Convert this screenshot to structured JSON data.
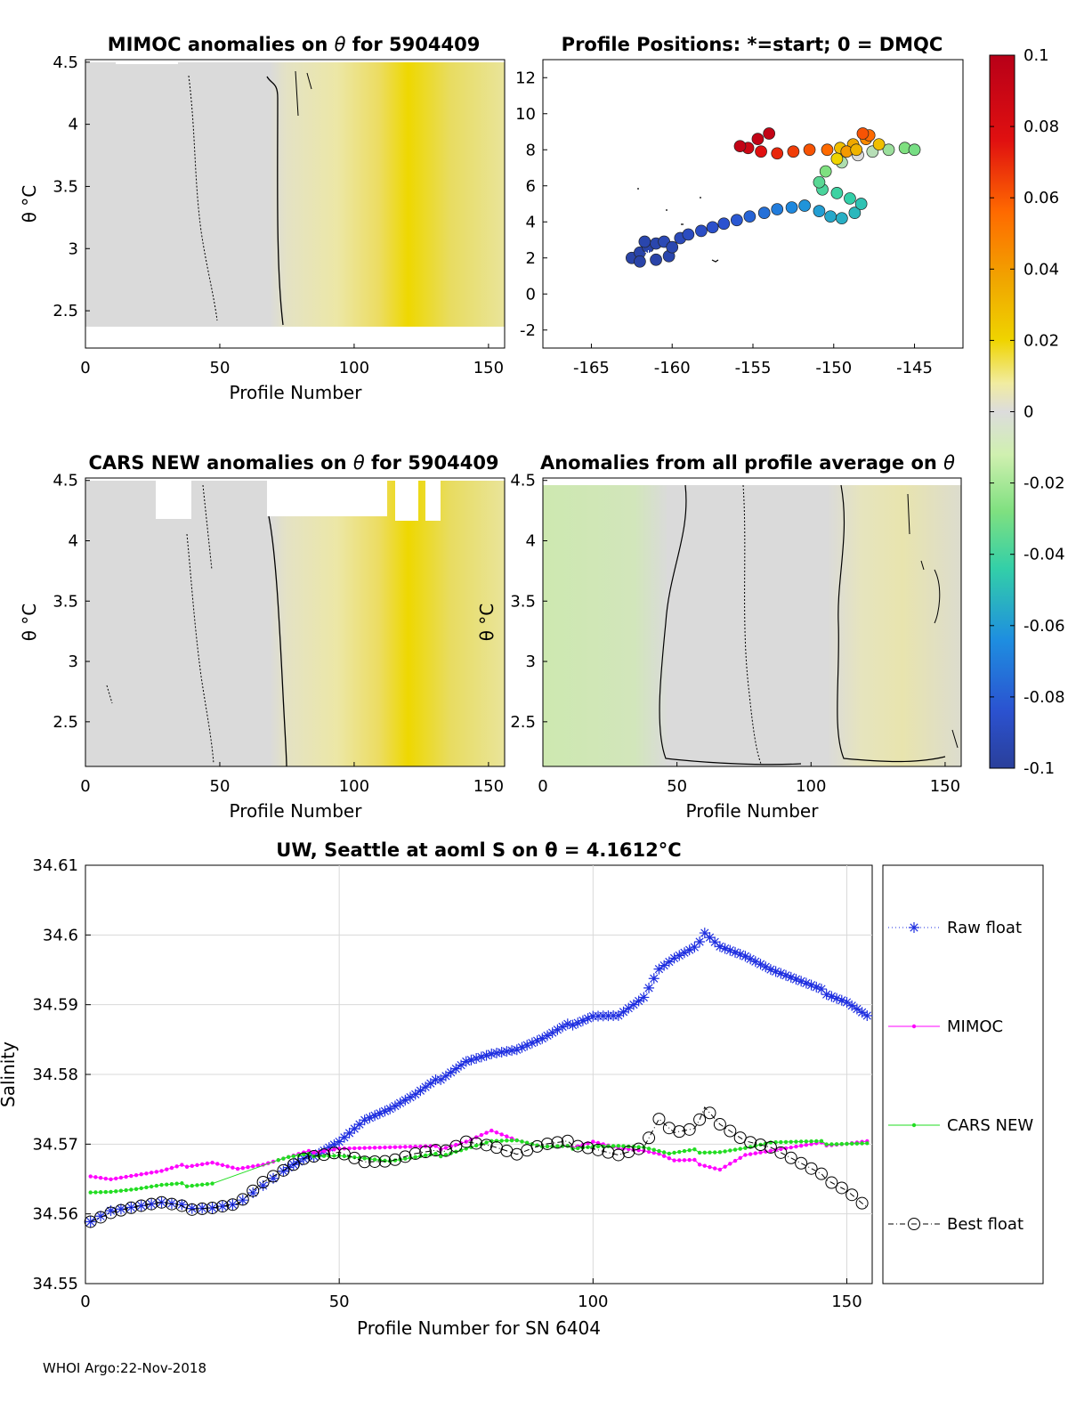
{
  "colors": {
    "raw": "#1f2fe0",
    "mimoc": "#ff00ff",
    "cars": "#22dd22",
    "best": "#000000",
    "grid": "#d9d9d9",
    "panel_bg": "#d8d8d8"
  },
  "panel1": {
    "title_pre": "MIMOC anomalies on ",
    "title_sym": "θ",
    "title_post": "  for 5904409",
    "ylabel": "θ °C",
    "xlabel": "Profile Number",
    "xticks": [
      "0",
      "50",
      "100",
      "150"
    ],
    "yticks": [
      "2.5",
      "3",
      "3.5",
      "4",
      "4.5"
    ],
    "xlim": [
      0,
      156
    ],
    "ylim": [
      2.2,
      4.52
    ]
  },
  "panel2": {
    "title": "Profile Positions: *=start; 0 = DMQC",
    "xticks": [
      "-165",
      "-160",
      "-155",
      "-150",
      "-145"
    ],
    "yticks": [
      "-2",
      "0",
      "2",
      "4",
      "6",
      "8",
      "10",
      "12"
    ],
    "xlim": [
      -168,
      -142
    ],
    "ylim": [
      -3,
      13
    ]
  },
  "panel3": {
    "title_pre": "CARS NEW anomalies on ",
    "title_sym": "θ",
    "title_post": " for 5904409",
    "ylabel": "θ °C",
    "xlabel": "Profile Number",
    "xticks": [
      "0",
      "50",
      "100",
      "150"
    ],
    "yticks": [
      "2.5",
      "3",
      "3.5",
      "4",
      "4.5"
    ]
  },
  "panel4": {
    "title_pre": "Anomalies from all profile average on ",
    "title_sym": "θ",
    "ylabel": "θ °C",
    "xlabel": "Profile Number",
    "xticks": [
      "0",
      "50",
      "100",
      "150"
    ],
    "yticks": [
      "2.5",
      "3",
      "3.5",
      "4",
      "4.5"
    ]
  },
  "colorbar": {
    "ticks": [
      "0.1",
      "0.08",
      "0.06",
      "0.04",
      "0.02",
      "0",
      "-0.02",
      "-0.04",
      "-0.06",
      "-0.08",
      "-0.1"
    ],
    "range": [
      -0.1,
      0.1
    ]
  },
  "chart_data": {
    "type": "line",
    "title": "UW, Seattle at aoml S on θ = 4.1612°C",
    "xlabel": "Profile Number for SN 6404",
    "ylabel": "Salinity",
    "xlim": [
      0,
      155
    ],
    "ylim": [
      34.55,
      34.61
    ],
    "xticks": [
      "0",
      "50",
      "100",
      "150"
    ],
    "yticks": [
      "34.55",
      "34.56",
      "34.57",
      "34.58",
      "34.59",
      "34.6",
      "34.61"
    ],
    "grid": true,
    "legend_placement": "right-outside",
    "series": [
      {
        "name": "Raw float",
        "x": [
          1,
          5,
          10,
          15,
          20,
          25,
          30,
          35,
          40,
          45,
          50,
          55,
          60,
          65,
          70,
          75,
          80,
          85,
          90,
          95,
          100,
          105,
          110,
          113,
          116,
          120,
          122,
          125,
          130,
          135,
          140,
          145,
          150,
          154
        ],
        "values": [
          34.559,
          34.5605,
          34.561,
          34.5615,
          34.561,
          34.561,
          34.5615,
          34.564,
          34.5665,
          34.5685,
          34.5705,
          34.5735,
          34.575,
          34.577,
          34.5795,
          34.582,
          34.583,
          34.5835,
          34.585,
          34.587,
          34.5885,
          34.5885,
          34.591,
          34.595,
          34.5965,
          34.598,
          34.6005,
          34.5985,
          34.597,
          34.595,
          34.5935,
          34.592,
          34.5905,
          34.5885
        ]
      },
      {
        "name": "MIMOC",
        "x": [
          1,
          5,
          10,
          15,
          20,
          25,
          30,
          35,
          40,
          45,
          50,
          55,
          60,
          65,
          70,
          75,
          80,
          85,
          90,
          95,
          100,
          105,
          110,
          113,
          116,
          120,
          125,
          130,
          135,
          140,
          145,
          150,
          154
        ],
        "values": [
          34.5655,
          34.565,
          34.5655,
          34.566,
          34.567,
          34.5675,
          34.5665,
          34.567,
          34.568,
          34.569,
          34.5695,
          34.5695,
          34.5695,
          34.5695,
          34.5695,
          34.5705,
          34.572,
          34.5705,
          34.5695,
          34.5695,
          34.5705,
          34.5695,
          34.569,
          34.5685,
          34.5675,
          34.5675,
          34.5665,
          34.5685,
          34.569,
          34.5695,
          34.57,
          34.5702,
          34.5705
        ]
      },
      {
        "name": "CARS NEW",
        "x": [
          1,
          5,
          10,
          15,
          20,
          25,
          30,
          35,
          40,
          45,
          50,
          55,
          60,
          65,
          70,
          75,
          80,
          85,
          90,
          95,
          100,
          105,
          110,
          115,
          120,
          125,
          130,
          135,
          140,
          145,
          150,
          154
        ],
        "values": [
          34.5632,
          34.5632,
          34.5635,
          34.564,
          34.5642,
          34.5645,
          34.566,
          34.567,
          34.568,
          34.5685,
          34.5685,
          34.568,
          34.5675,
          34.568,
          34.5685,
          34.5695,
          34.5705,
          34.5705,
          34.5695,
          34.5695,
          34.5698,
          34.5698,
          34.5695,
          34.5685,
          34.569,
          34.569,
          34.5695,
          34.5702,
          34.5702,
          34.5702,
          34.5702,
          34.5702
        ]
      },
      {
        "name": "Best float",
        "x": [
          1,
          5,
          10,
          15,
          20,
          25,
          30,
          35,
          40,
          45,
          50,
          55,
          60,
          65,
          70,
          75,
          80,
          85,
          90,
          95,
          100,
          105,
          110,
          113,
          116,
          120,
          122,
          125,
          130,
          135,
          140,
          145,
          150,
          154
        ],
        "values": [
          34.559,
          34.5602,
          34.561,
          34.5615,
          34.5608,
          34.561,
          34.5615,
          34.5645,
          34.5665,
          34.5685,
          34.569,
          34.5675,
          34.5675,
          34.5685,
          34.569,
          34.5705,
          34.5698,
          34.5685,
          34.5698,
          34.5702,
          34.5695,
          34.5685,
          34.5695,
          34.5735,
          34.5715,
          34.572,
          34.5755,
          34.573,
          34.5705,
          34.5695,
          34.5675,
          34.5655,
          34.5635,
          34.561
        ]
      }
    ]
  },
  "footer": "WHOI Argo:22-Nov-2018"
}
